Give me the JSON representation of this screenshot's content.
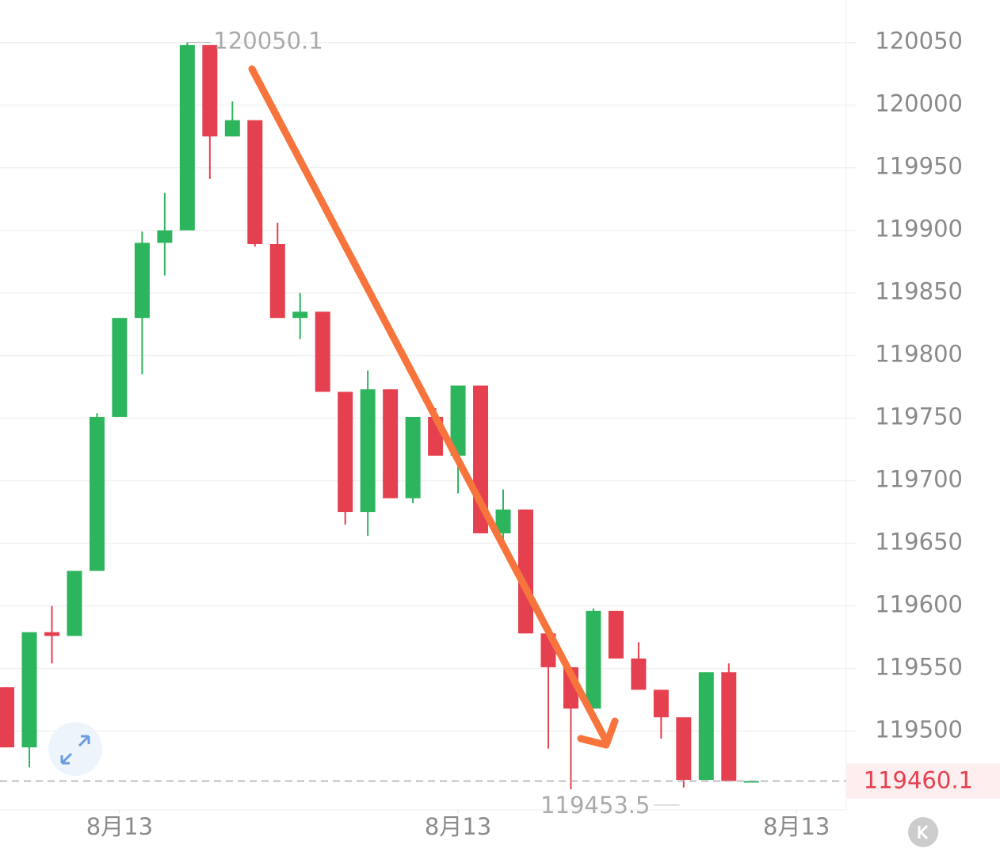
{
  "chart_data": {
    "type": "candlestick",
    "xticks": [
      {
        "value": 5,
        "label": "8月13"
      },
      {
        "value": 20,
        "label": "8月13"
      },
      {
        "value": 35,
        "label": "8月13"
      }
    ],
    "xlim": [
      -0.3,
      37.1
    ],
    "ylim": [
      119437,
      120084
    ],
    "yticks": [
      119500,
      119550,
      119600,
      119650,
      119700,
      119750,
      119800,
      119850,
      119900,
      119950,
      120000,
      120050
    ],
    "up_color": "#2db55d",
    "down_color": "#e5404f",
    "open": [
      119535,
      119487,
      119579,
      119576,
      119628,
      119751,
      119830,
      119890,
      119900,
      120048,
      119975,
      119988,
      119889,
      119830,
      119835,
      119771,
      119675,
      119773,
      119686,
      119751,
      119720,
      119776,
      119658,
      119677,
      119578,
      119551,
      119518,
      119596,
      119558,
      119533,
      119511,
      119461,
      119547,
      119460.1
    ],
    "high": [
      119535,
      119579,
      119600,
      119628,
      119754,
      119830,
      119899,
      119930,
      120050.1,
      120048,
      120003,
      119988,
      119906,
      119850,
      119835,
      119771,
      119788,
      119773,
      119751,
      119758,
      119776,
      119776,
      119693,
      119677,
      119578,
      119551,
      119598,
      119596,
      119571,
      119533,
      119511,
      119547,
      119554,
      119460.1
    ],
    "low": [
      119487,
      119471,
      119554,
      119576,
      119628,
      119751,
      119785,
      119864,
      119900,
      119941,
      119975,
      119887,
      119830,
      119813,
      119771,
      119665,
      119656,
      119686,
      119682,
      119720,
      119690,
      119658,
      119653,
      119578,
      119486,
      119453.5,
      119518,
      119558,
      119533,
      119494,
      119455,
      119461,
      119460.1,
      119460.1
    ],
    "close": [
      119487,
      119579,
      119576,
      119628,
      119751,
      119830,
      119890,
      119900,
      120048,
      119975,
      119988,
      119889,
      119830,
      119835,
      119771,
      119675,
      119773,
      119686,
      119751,
      119720,
      119776,
      119658,
      119677,
      119578,
      119551,
      119518,
      119596,
      119558,
      119533,
      119511,
      119461,
      119547,
      119460.1,
      119460.1
    ],
    "high_annotation": 120050.1,
    "low_annotation": 119453.5,
    "last_price": 119460.1,
    "grid": true
  }
}
